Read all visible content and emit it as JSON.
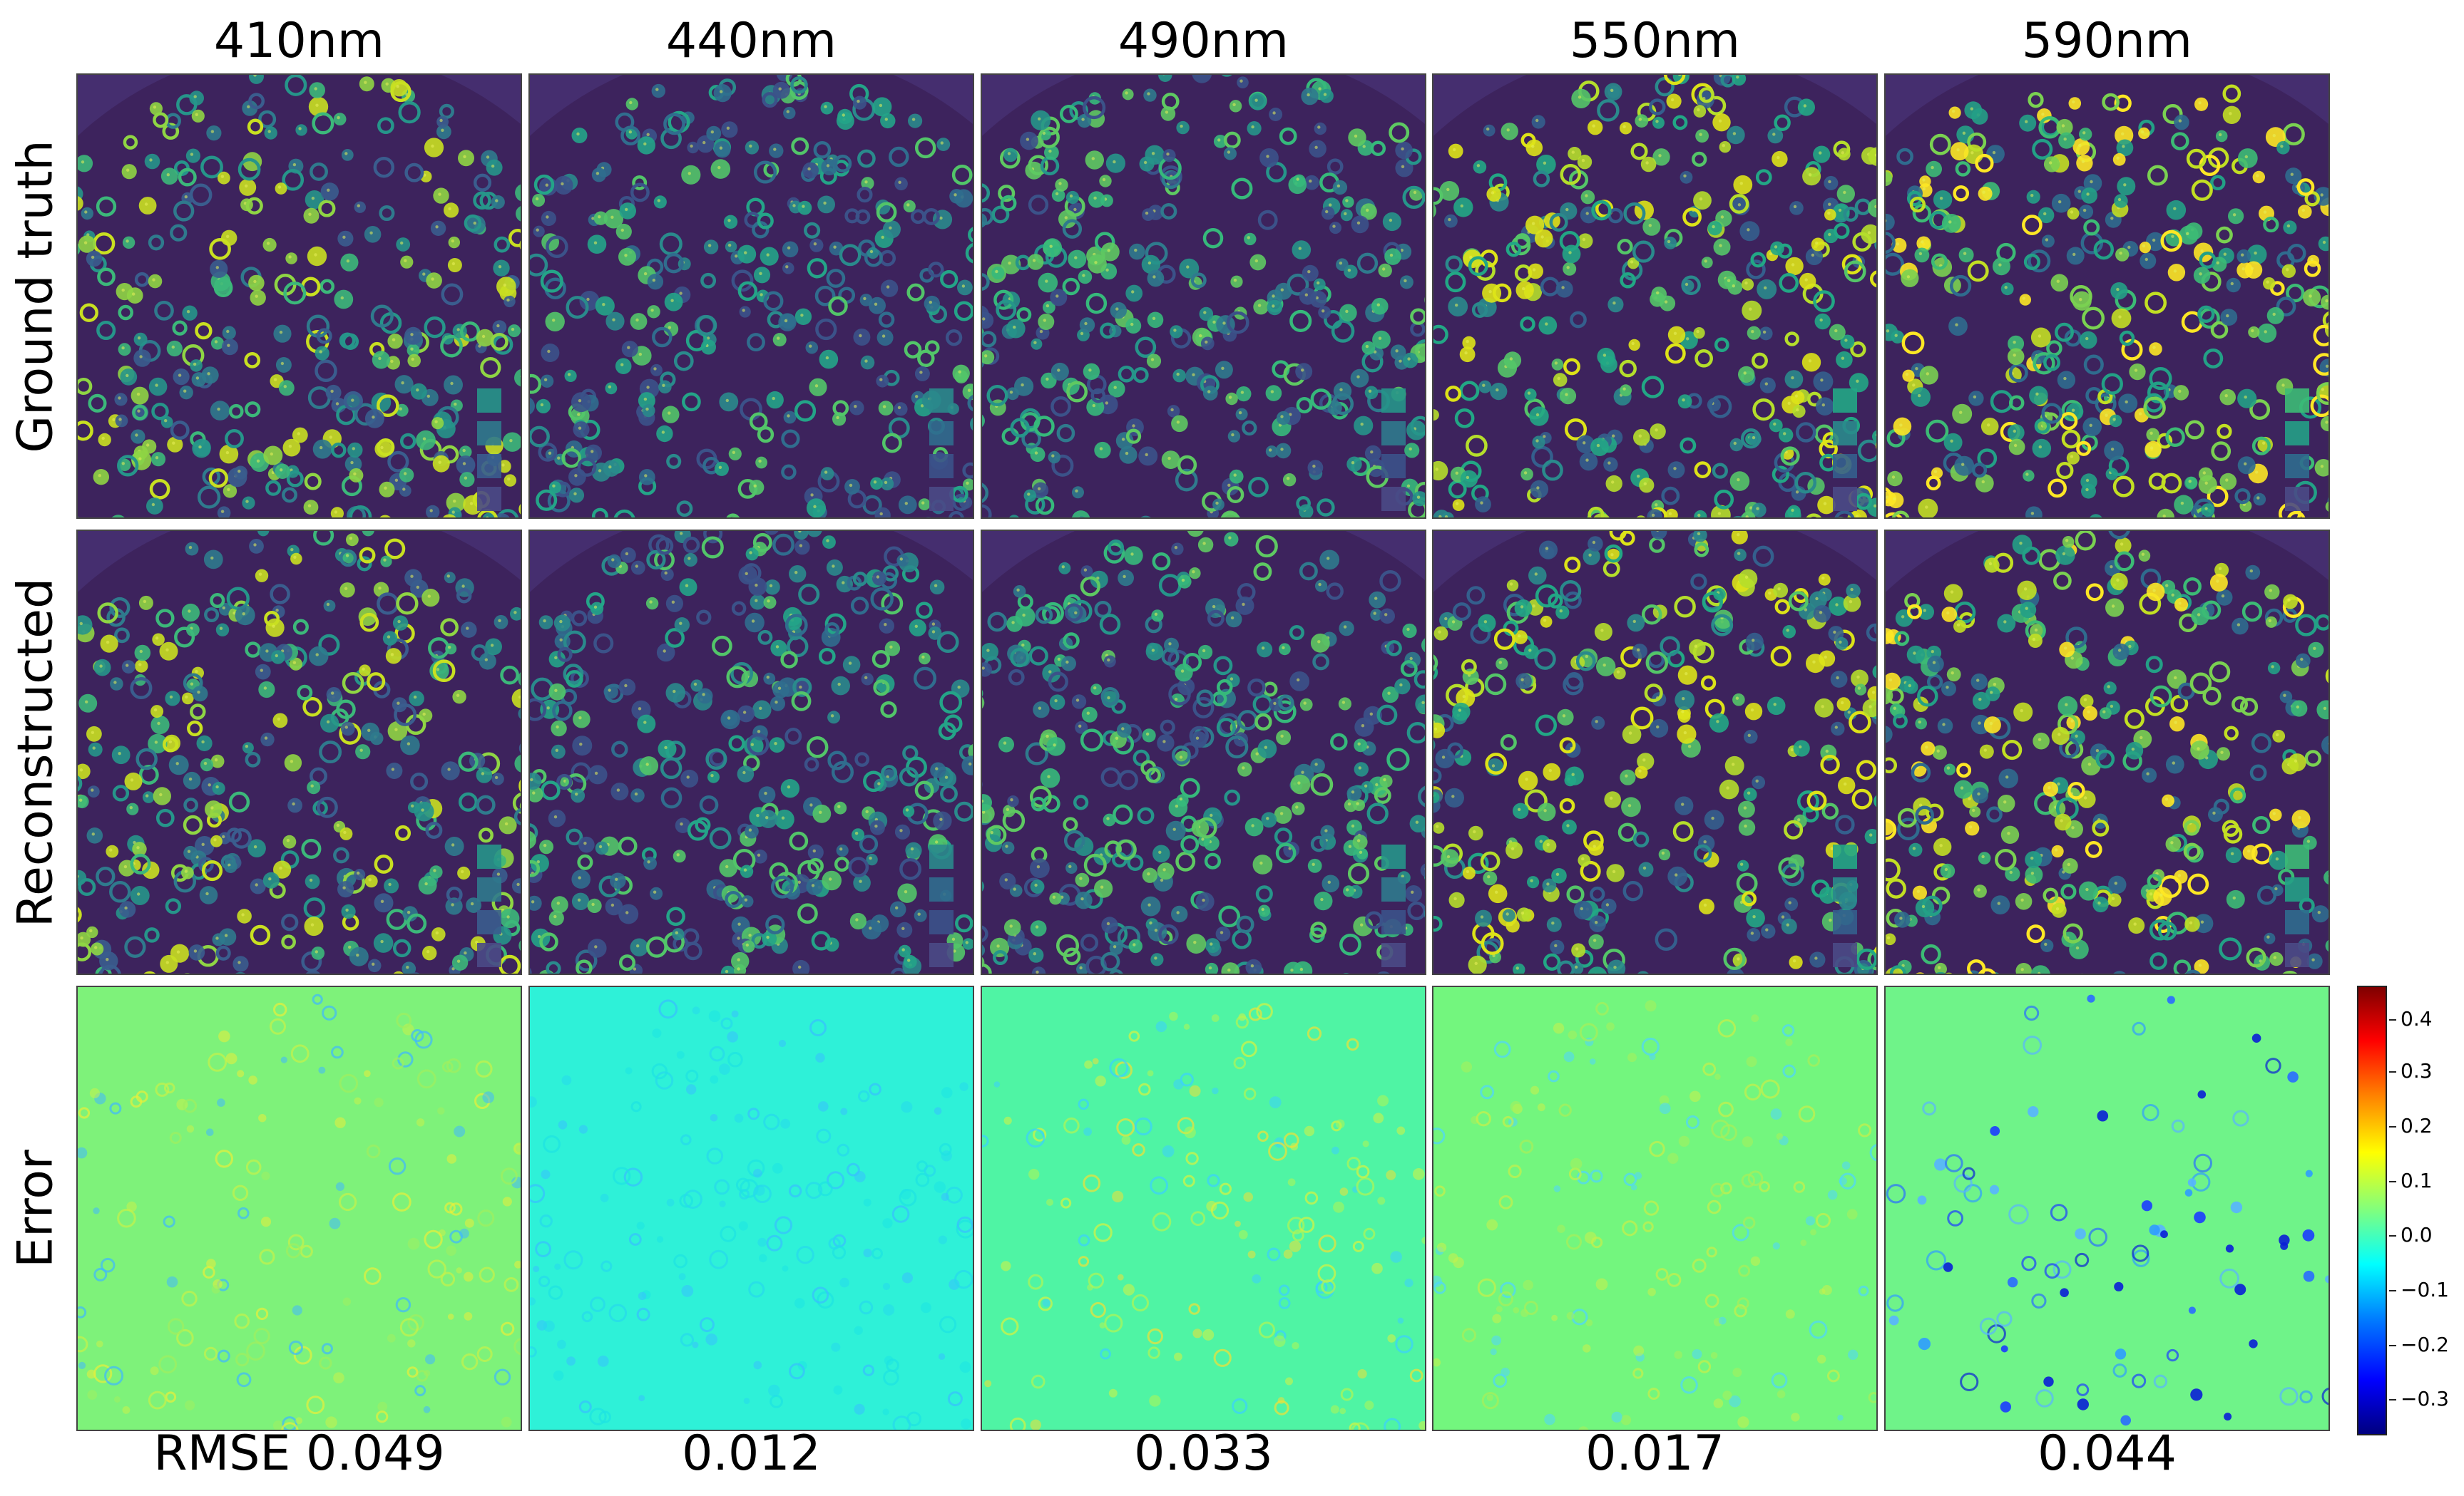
{
  "wavelengths": [
    "410nm",
    "440nm",
    "490nm",
    "550nm",
    "590nm"
  ],
  "rows": [
    "Ground truth",
    "Reconstructed",
    "Error"
  ],
  "rmse": [
    "RMSE 0.049",
    "0.012",
    "0.033",
    "0.017",
    "0.044"
  ],
  "colorbar": {
    "colormap": "jet",
    "range": [
      -0.37,
      0.44
    ],
    "ticks": [
      "0.4",
      "0.3",
      "0.2",
      "0.1",
      "0.0",
      "−0.1",
      "−0.2",
      "−0.3"
    ]
  },
  "colors": {
    "viridis_background": "#452e6f",
    "viridis_dark": "#3b1f55",
    "error_410": "#7ef27a",
    "error_440": "#2ef1d8",
    "error_490": "#4ff4a4",
    "error_550": "#73f67e",
    "error_590": "#6ff389"
  }
}
